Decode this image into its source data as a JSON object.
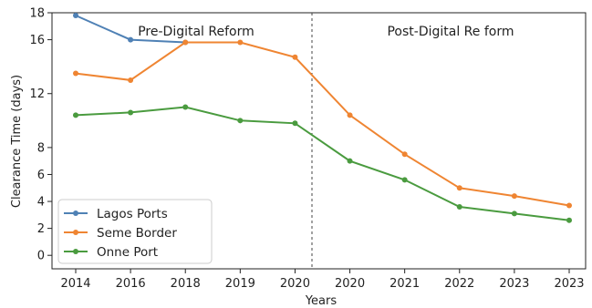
{
  "chart_data": {
    "type": "line",
    "categories": [
      "2014",
      "2016",
      "2018",
      "2019",
      "2020",
      "2020",
      "2021",
      "2022",
      "2023",
      "2023"
    ],
    "xlabel": "Years",
    "ylabel": "Clearance Time (days)",
    "ylim": [
      -1,
      18
    ],
    "yticks": [
      0,
      2,
      4,
      6,
      8,
      12,
      16,
      18
    ],
    "grid": false,
    "legend_position": "lower-left",
    "series": [
      {
        "name": "Lagos Ports",
        "color": "#4f81b5",
        "values": [
          17.8,
          16.0,
          15.8,
          null,
          null,
          null,
          null,
          null,
          null,
          null
        ]
      },
      {
        "name": "Seme Border",
        "color": "#ef8532",
        "values": [
          13.5,
          13.0,
          15.8,
          15.8,
          14.7,
          10.4,
          7.5,
          5.0,
          4.4,
          3.7
        ]
      },
      {
        "name": "Onne Port",
        "color": "#4a9b3f",
        "values": [
          10.4,
          10.6,
          11.0,
          10.0,
          9.8,
          7.0,
          5.6,
          3.6,
          3.1,
          2.6
        ]
      }
    ],
    "annotations": [
      {
        "text": "Pre-Digital Reform"
      },
      {
        "text": "Post-Digital Re form"
      }
    ]
  }
}
